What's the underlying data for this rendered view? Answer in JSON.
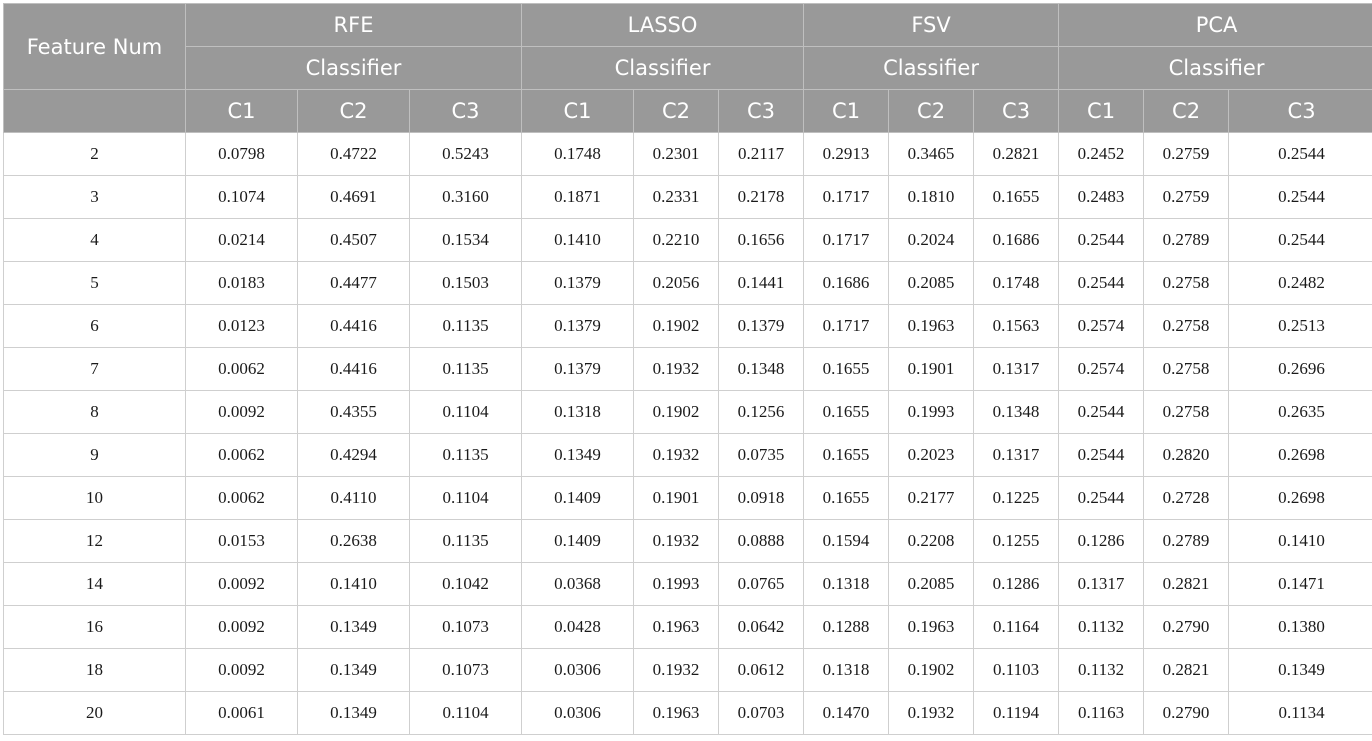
{
  "table": {
    "row_header": "Feature Num",
    "methods": [
      {
        "name": "RFE",
        "group": "Classifier",
        "classifiers": [
          "C1",
          "C2",
          "C3"
        ]
      },
      {
        "name": "LASSO",
        "group": "Classifier",
        "classifiers": [
          "C1",
          "C2",
          "C3"
        ]
      },
      {
        "name": "FSV",
        "group": "Classifier",
        "classifiers": [
          "C1",
          "C2",
          "C3"
        ]
      },
      {
        "name": "PCA",
        "group": "Classifier",
        "classifiers": [
          "C1",
          "C2",
          "C3"
        ]
      }
    ],
    "rows": [
      {
        "feature_num": "2",
        "values": [
          "0.0798",
          "0.4722",
          "0.5243",
          "0.1748",
          "0.2301",
          "0.2117",
          "0.2913",
          "0.3465",
          "0.2821",
          "0.2452",
          "0.2759",
          "0.2544"
        ]
      },
      {
        "feature_num": "3",
        "values": [
          "0.1074",
          "0.4691",
          "0.3160",
          "0.1871",
          "0.2331",
          "0.2178",
          "0.1717",
          "0.1810",
          "0.1655",
          "0.2483",
          "0.2759",
          "0.2544"
        ]
      },
      {
        "feature_num": "4",
        "values": [
          "0.0214",
          "0.4507",
          "0.1534",
          "0.1410",
          "0.2210",
          "0.1656",
          "0.1717",
          "0.2024",
          "0.1686",
          "0.2544",
          "0.2789",
          "0.2544"
        ]
      },
      {
        "feature_num": "5",
        "values": [
          "0.0183",
          "0.4477",
          "0.1503",
          "0.1379",
          "0.2056",
          "0.1441",
          "0.1686",
          "0.2085",
          "0.1748",
          "0.2544",
          "0.2758",
          "0.2482"
        ]
      },
      {
        "feature_num": "6",
        "values": [
          "0.0123",
          "0.4416",
          "0.1135",
          "0.1379",
          "0.1902",
          "0.1379",
          "0.1717",
          "0.1963",
          "0.1563",
          "0.2574",
          "0.2758",
          "0.2513"
        ]
      },
      {
        "feature_num": "7",
        "values": [
          "0.0062",
          "0.4416",
          "0.1135",
          "0.1379",
          "0.1932",
          "0.1348",
          "0.1655",
          "0.1901",
          "0.1317",
          "0.2574",
          "0.2758",
          "0.2696"
        ]
      },
      {
        "feature_num": "8",
        "values": [
          "0.0092",
          "0.4355",
          "0.1104",
          "0.1318",
          "0.1902",
          "0.1256",
          "0.1655",
          "0.1993",
          "0.1348",
          "0.2544",
          "0.2758",
          "0.2635"
        ]
      },
      {
        "feature_num": "9",
        "values": [
          "0.0062",
          "0.4294",
          "0.1135",
          "0.1349",
          "0.1932",
          "0.0735",
          "0.1655",
          "0.2023",
          "0.1317",
          "0.2544",
          "0.2820",
          "0.2698"
        ]
      },
      {
        "feature_num": "10",
        "values": [
          "0.0062",
          "0.4110",
          "0.1104",
          "0.1409",
          "0.1901",
          "0.0918",
          "0.1655",
          "0.2177",
          "0.1225",
          "0.2544",
          "0.2728",
          "0.2698"
        ]
      },
      {
        "feature_num": "12",
        "values": [
          "0.0153",
          "0.2638",
          "0.1135",
          "0.1409",
          "0.1932",
          "0.0888",
          "0.1594",
          "0.2208",
          "0.1255",
          "0.1286",
          "0.2789",
          "0.1410"
        ]
      },
      {
        "feature_num": "14",
        "values": [
          "0.0092",
          "0.1410",
          "0.1042",
          "0.0368",
          "0.1993",
          "0.0765",
          "0.1318",
          "0.2085",
          "0.1286",
          "0.1317",
          "0.2821",
          "0.1471"
        ]
      },
      {
        "feature_num": "16",
        "values": [
          "0.0092",
          "0.1349",
          "0.1073",
          "0.0428",
          "0.1963",
          "0.0642",
          "0.1288",
          "0.1963",
          "0.1164",
          "0.1132",
          "0.2790",
          "0.1380"
        ]
      },
      {
        "feature_num": "18",
        "values": [
          "0.0092",
          "0.1349",
          "0.1073",
          "0.0306",
          "0.1932",
          "0.0612",
          "0.1318",
          "0.1902",
          "0.1103",
          "0.1132",
          "0.2821",
          "0.1349"
        ]
      },
      {
        "feature_num": "20",
        "values": [
          "0.0061",
          "0.1349",
          "0.1104",
          "0.0306",
          "0.1963",
          "0.0703",
          "0.1470",
          "0.1932",
          "0.1194",
          "0.1163",
          "0.2790",
          "0.1134"
        ]
      }
    ]
  },
  "colors": {
    "header_bg": "#999999",
    "header_text": "#ffffff",
    "grid_line": "#cfcfcf"
  }
}
